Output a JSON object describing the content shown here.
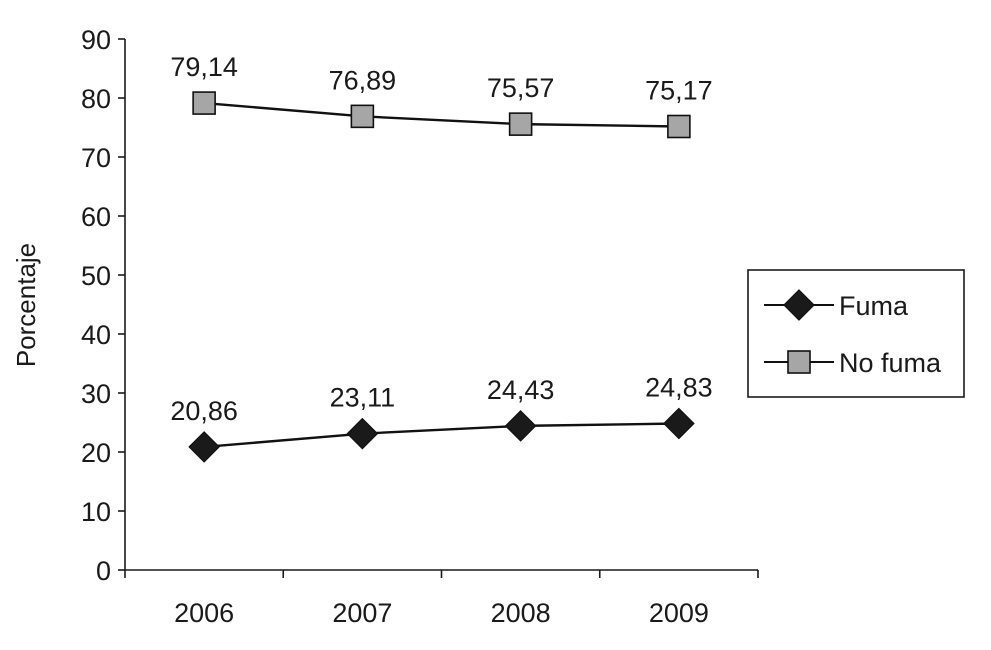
{
  "chart_data": {
    "type": "line",
    "categories": [
      "2006",
      "2007",
      "2008",
      "2009"
    ],
    "series": [
      {
        "name": "Fuma",
        "values": [
          20.86,
          23.11,
          24.43,
          24.83
        ],
        "labels": [
          "20,86",
          "23,11",
          "24,43",
          "24,83"
        ],
        "marker": "diamond",
        "marker_color": "#1a1a1a"
      },
      {
        "name": "No fuma",
        "values": [
          79.14,
          76.89,
          75.57,
          75.17
        ],
        "labels": [
          "79,14",
          "76,89",
          "75,57",
          "75,17"
        ],
        "marker": "square",
        "marker_color": "#a6a6a6"
      }
    ],
    "ylabel": "Porcentaje",
    "xlabel": "",
    "ylim": [
      0,
      90
    ],
    "yticks": [
      0,
      10,
      20,
      30,
      40,
      50,
      60,
      70,
      80,
      90
    ],
    "grid": false,
    "legend_position": "right"
  }
}
